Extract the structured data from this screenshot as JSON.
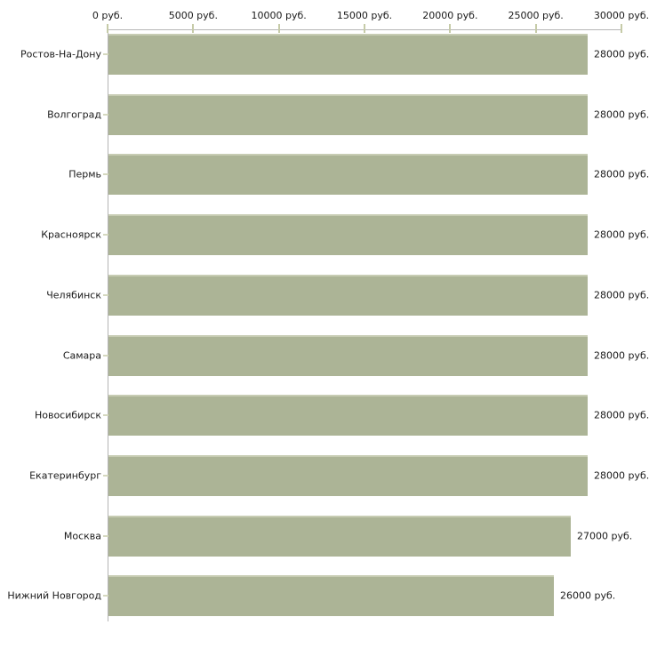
{
  "chart_data": {
    "type": "bar",
    "orientation": "horizontal",
    "title": "",
    "xlabel": "",
    "ylabel": "",
    "unit": "руб.",
    "categories": [
      "Ростов-На-Дону",
      "Волгоград",
      "Пермь",
      "Красноярск",
      "Челябинск",
      "Самара",
      "Новосибирск",
      "Екатеринбург",
      "Москва",
      "Нижний Новгород"
    ],
    "values": [
      28000,
      28000,
      28000,
      28000,
      28000,
      28000,
      28000,
      28000,
      27000,
      26000
    ],
    "value_labels": [
      "28000 руб.",
      "28000 руб.",
      "28000 руб.",
      "28000 руб.",
      "28000 руб.",
      "28000 руб.",
      "28000 руб.",
      "28000 руб.",
      "27000 руб.",
      "26000 руб."
    ],
    "x_axis": {
      "min": 0,
      "max": 30000,
      "ticks": [
        0,
        5000,
        10000,
        15000,
        20000,
        25000,
        30000
      ],
      "tick_labels": [
        "0 руб.",
        "5000 руб.",
        "10000 руб.",
        "15000 руб.",
        "20000 руб.",
        "25000 руб.",
        "30000 руб."
      ]
    },
    "grid": false,
    "legend": false,
    "colors": {
      "bar_fill": "#acb496",
      "bar_top_edge": "#c7ccb3",
      "axis_line": "#b5b5b5",
      "x_tick": "#c6cba8",
      "y_tick": "#d5d8bf",
      "text": "#1a1a1a",
      "background": "#ffffff"
    }
  }
}
